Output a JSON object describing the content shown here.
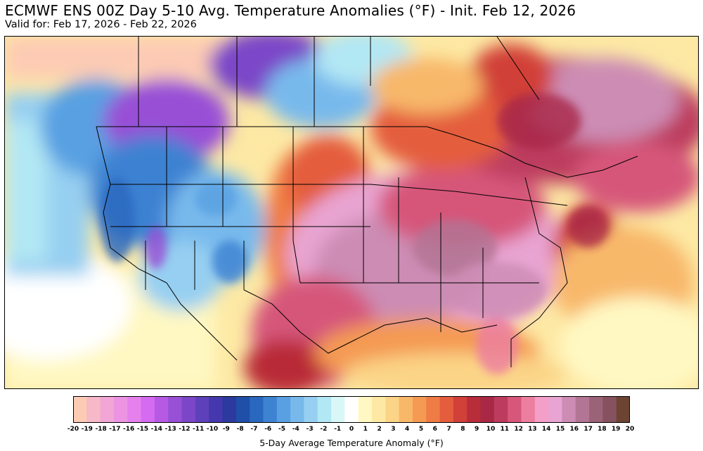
{
  "header": {
    "title": "ECMWF ENS 00Z Day 5-10 Avg. Temperature Anomalies (°F) - Init. Feb 12, 2026",
    "subtitle": "Valid for: Feb 17, 2026 - Feb 22, 2026"
  },
  "colorbar": {
    "label": "5-Day Average Temperature Anomaly (°F)",
    "ticks": [
      "-20",
      "-19",
      "-18",
      "-17",
      "-16",
      "-15",
      "-14",
      "-13",
      "-12",
      "-11",
      "-10",
      "-9",
      "-8",
      "-7",
      "-6",
      "-5",
      "-4",
      "-3",
      "-2",
      "-1",
      "0",
      "1",
      "2",
      "3",
      "4",
      "5",
      "6",
      "7",
      "8",
      "9",
      "10",
      "11",
      "12",
      "13",
      "14",
      "15",
      "16",
      "17",
      "18",
      "19",
      "20"
    ],
    "colors": [
      "#fdcbb4",
      "#f7b8c7",
      "#f1a6d6",
      "#ec94e2",
      "#e580ec",
      "#d46bf0",
      "#b65ae3",
      "#9850d6",
      "#7b47c8",
      "#5f40bb",
      "#4538ae",
      "#2b3a9c",
      "#1f4fa8",
      "#2a68bf",
      "#3e82d2",
      "#59a0e2",
      "#78b9ec",
      "#96cff1",
      "#b2e7f4",
      "#d9f7f7",
      "#ffffff",
      "#fff8c2",
      "#fde9a4",
      "#fbd487",
      "#f8b86a",
      "#f49a53",
      "#ef7b45",
      "#e45d3d",
      "#d14039",
      "#b92c39",
      "#a82846",
      "#bd3c5e",
      "#d6577a",
      "#ec7ea0",
      "#f49fc7",
      "#e8a4d2",
      "#cc8cb4",
      "#b27594",
      "#9b6378",
      "#865260",
      "#6d4433"
    ],
    "colors_note": "",
    "units": "°F"
  },
  "map": {
    "region": "Contiguous United States",
    "layers": [
      "temperature-anomaly-fill",
      "state-borders",
      "country-borders",
      "coastlines"
    ]
  }
}
